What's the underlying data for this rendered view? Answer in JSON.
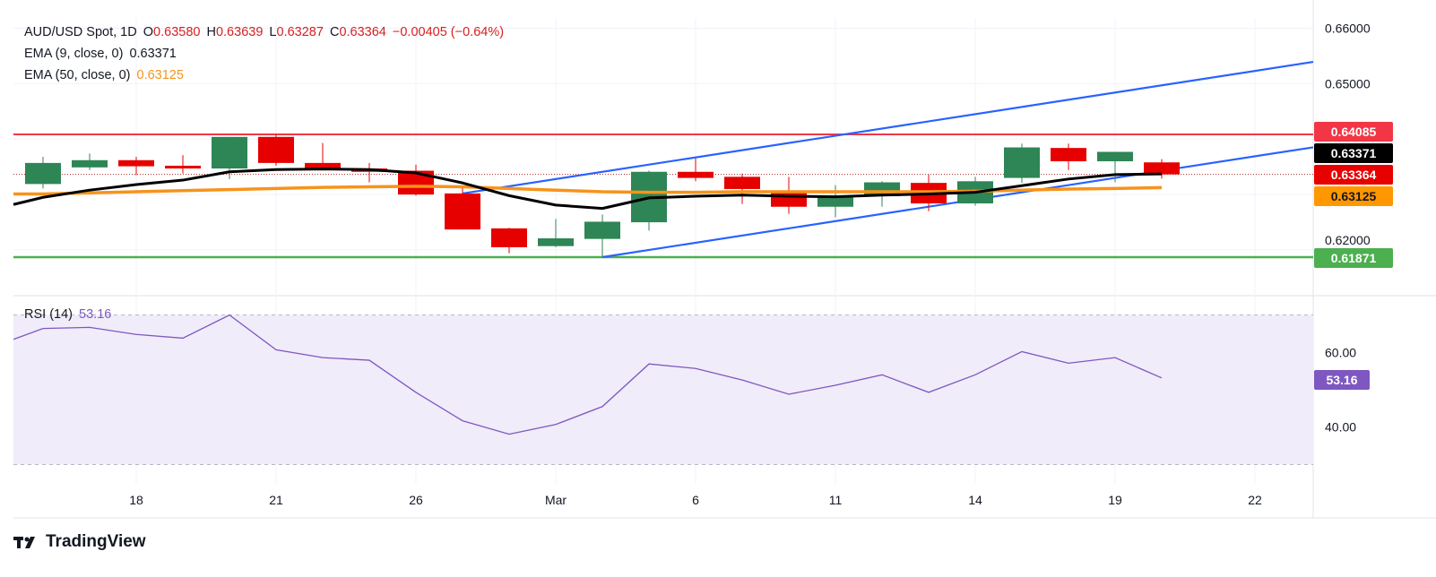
{
  "header": {
    "symbol": "AUD/USD Spot, 1D",
    "o_label": "O",
    "open": "0.63580",
    "h_label": "H",
    "high": "0.63639",
    "l_label": "L",
    "low": "0.63287",
    "c_label": "C",
    "close": "0.63364",
    "change": "−0.00405 (−0.64%)",
    "ema9_label": "EMA (9, close, 0)",
    "ema9_value": "0.63371",
    "ema50_label": "EMA (50, close, 0)",
    "ema50_value": "0.63125"
  },
  "price_labels": {
    "resistance": "0.64085",
    "ema9": "0.63371",
    "close": "0.63364",
    "ema50": "0.63125",
    "support": "0.61871"
  },
  "rsi": {
    "label": "RSI (14)",
    "value": "53.16",
    "ticks": [
      "60.00",
      "40.00"
    ]
  },
  "branding": {
    "logo_text": "TradingView"
  },
  "colors": {
    "up": "#2e8555",
    "down": "#e60000",
    "ema9": "#000000",
    "ema50": "#f7931a",
    "resistance": "#f23645",
    "support": "#4caf50",
    "channel": "#2962ff",
    "rsi": "#7e57c2"
  },
  "chart_data": [
    {
      "type": "candlestick",
      "title": "AUD/USD Spot, 1D",
      "y_ticks": [
        "0.66000",
        "0.65000",
        "0.62000"
      ],
      "ylim": [
        0.615,
        0.661
      ],
      "x_ticks": [
        "18",
        "21",
        "26",
        "Mar",
        "6",
        "11",
        "14",
        "19",
        "22"
      ],
      "grid": true,
      "candles": [
        {
          "date": "Feb 14",
          "o": 0.6319,
          "h": 0.6368,
          "l": 0.6311,
          "c": 0.6357
        },
        {
          "date": "Feb 17",
          "o": 0.6349,
          "h": 0.6374,
          "l": 0.6344,
          "c": 0.6362
        },
        {
          "date": "Feb 18",
          "o": 0.6362,
          "h": 0.6368,
          "l": 0.6335,
          "c": 0.6351
        },
        {
          "date": "Feb 19",
          "o": 0.6352,
          "h": 0.6371,
          "l": 0.6338,
          "c": 0.6347
        },
        {
          "date": "Feb 20",
          "o": 0.6347,
          "h": 0.6404,
          "l": 0.6328,
          "c": 0.6404
        },
        {
          "date": "Feb 21",
          "o": 0.6404,
          "h": 0.6409,
          "l": 0.6352,
          "c": 0.6357
        },
        {
          "date": "Feb 24",
          "o": 0.6357,
          "h": 0.6393,
          "l": 0.6345,
          "c": 0.6346
        },
        {
          "date": "Feb 25",
          "o": 0.6347,
          "h": 0.6357,
          "l": 0.6322,
          "c": 0.6341
        },
        {
          "date": "Feb 26",
          "o": 0.6343,
          "h": 0.6354,
          "l": 0.6298,
          "c": 0.63
        },
        {
          "date": "Feb 27",
          "o": 0.6302,
          "h": 0.6316,
          "l": 0.6237,
          "c": 0.6237
        },
        {
          "date": "Feb 28",
          "o": 0.6239,
          "h": 0.624,
          "l": 0.6194,
          "c": 0.6205
        },
        {
          "date": "Mar 3",
          "o": 0.6207,
          "h": 0.6256,
          "l": 0.6205,
          "c": 0.6221
        },
        {
          "date": "Mar 4",
          "o": 0.622,
          "h": 0.6264,
          "l": 0.61871,
          "c": 0.6251
        },
        {
          "date": "Mar 5",
          "o": 0.625,
          "h": 0.6343,
          "l": 0.6235,
          "c": 0.6341
        },
        {
          "date": "Mar 6",
          "o": 0.6341,
          "h": 0.6365,
          "l": 0.6324,
          "c": 0.633
        },
        {
          "date": "Mar 7",
          "o": 0.6332,
          "h": 0.6338,
          "l": 0.6283,
          "c": 0.631
        },
        {
          "date": "Mar 10",
          "o": 0.6306,
          "h": 0.6332,
          "l": 0.6265,
          "c": 0.6278
        },
        {
          "date": "Mar 11",
          "o": 0.6278,
          "h": 0.6317,
          "l": 0.6259,
          "c": 0.6298
        },
        {
          "date": "Mar 12",
          "o": 0.6297,
          "h": 0.6324,
          "l": 0.6278,
          "c": 0.6322
        },
        {
          "date": "Mar 13",
          "o": 0.6321,
          "h": 0.6336,
          "l": 0.627,
          "c": 0.6284
        },
        {
          "date": "Mar 14",
          "o": 0.6284,
          "h": 0.6332,
          "l": 0.628,
          "c": 0.6324
        },
        {
          "date": "Mar 17",
          "o": 0.633,
          "h": 0.6392,
          "l": 0.6321,
          "c": 0.6385
        },
        {
          "date": "Mar 18",
          "o": 0.6384,
          "h": 0.6392,
          "l": 0.6344,
          "c": 0.636
        },
        {
          "date": "Mar 19",
          "o": 0.636,
          "h": 0.6377,
          "l": 0.6322,
          "c": 0.6377
        },
        {
          "date": "Mar 20",
          "o": 0.6358,
          "h": 0.63639,
          "l": 0.63287,
          "c": 0.63364
        }
      ],
      "ema9": [
        0.6295,
        0.6308,
        0.6318,
        0.6326,
        0.6341,
        0.6345,
        0.6346,
        0.6345,
        0.6339,
        0.6321,
        0.6298,
        0.6281,
        0.6275,
        0.6294,
        0.6297,
        0.6299,
        0.6297,
        0.6296,
        0.6299,
        0.6301,
        0.6304,
        0.6316,
        0.6328,
        0.6336,
        0.63371
      ],
      "ema50": [
        0.6301,
        0.6303,
        0.6305,
        0.6307,
        0.6309,
        0.6311,
        0.6313,
        0.6314,
        0.6315,
        0.6314,
        0.6311,
        0.6308,
        0.6305,
        0.6304,
        0.6304,
        0.6305,
        0.6305,
        0.6305,
        0.6305,
        0.6305,
        0.6306,
        0.6308,
        0.631,
        0.6311,
        0.63125
      ],
      "horizontal_lines": {
        "resistance": 0.64085,
        "support": 0.61871,
        "last_close": 0.63364
      },
      "trendlines": [
        {
          "name": "channel-upper",
          "start": {
            "date": "Feb 27",
            "price": 0.6302
          },
          "end": {
            "date": "Mar 19",
            "price": 0.6484
          },
          "extend": "right"
        },
        {
          "name": "channel-lower",
          "start": {
            "date": "Mar 4",
            "price": 0.61871
          },
          "end": {
            "date": "Mar 19",
            "price": 0.633
          },
          "extend": "right"
        }
      ]
    },
    {
      "type": "line",
      "title": "RSI (14)",
      "ylim": [
        20,
        80
      ],
      "bands": [
        30,
        50,
        70
      ],
      "values": [
        66.4,
        66.7,
        64.8,
        63.8,
        70.0,
        60.7,
        58.6,
        57.9,
        49.3,
        41.7,
        38.1,
        40.7,
        45.5,
        56.9,
        55.7,
        52.6,
        48.8,
        51.2,
        54.0,
        49.3,
        54.0,
        60.2,
        57.1,
        58.6,
        53.16
      ]
    }
  ]
}
